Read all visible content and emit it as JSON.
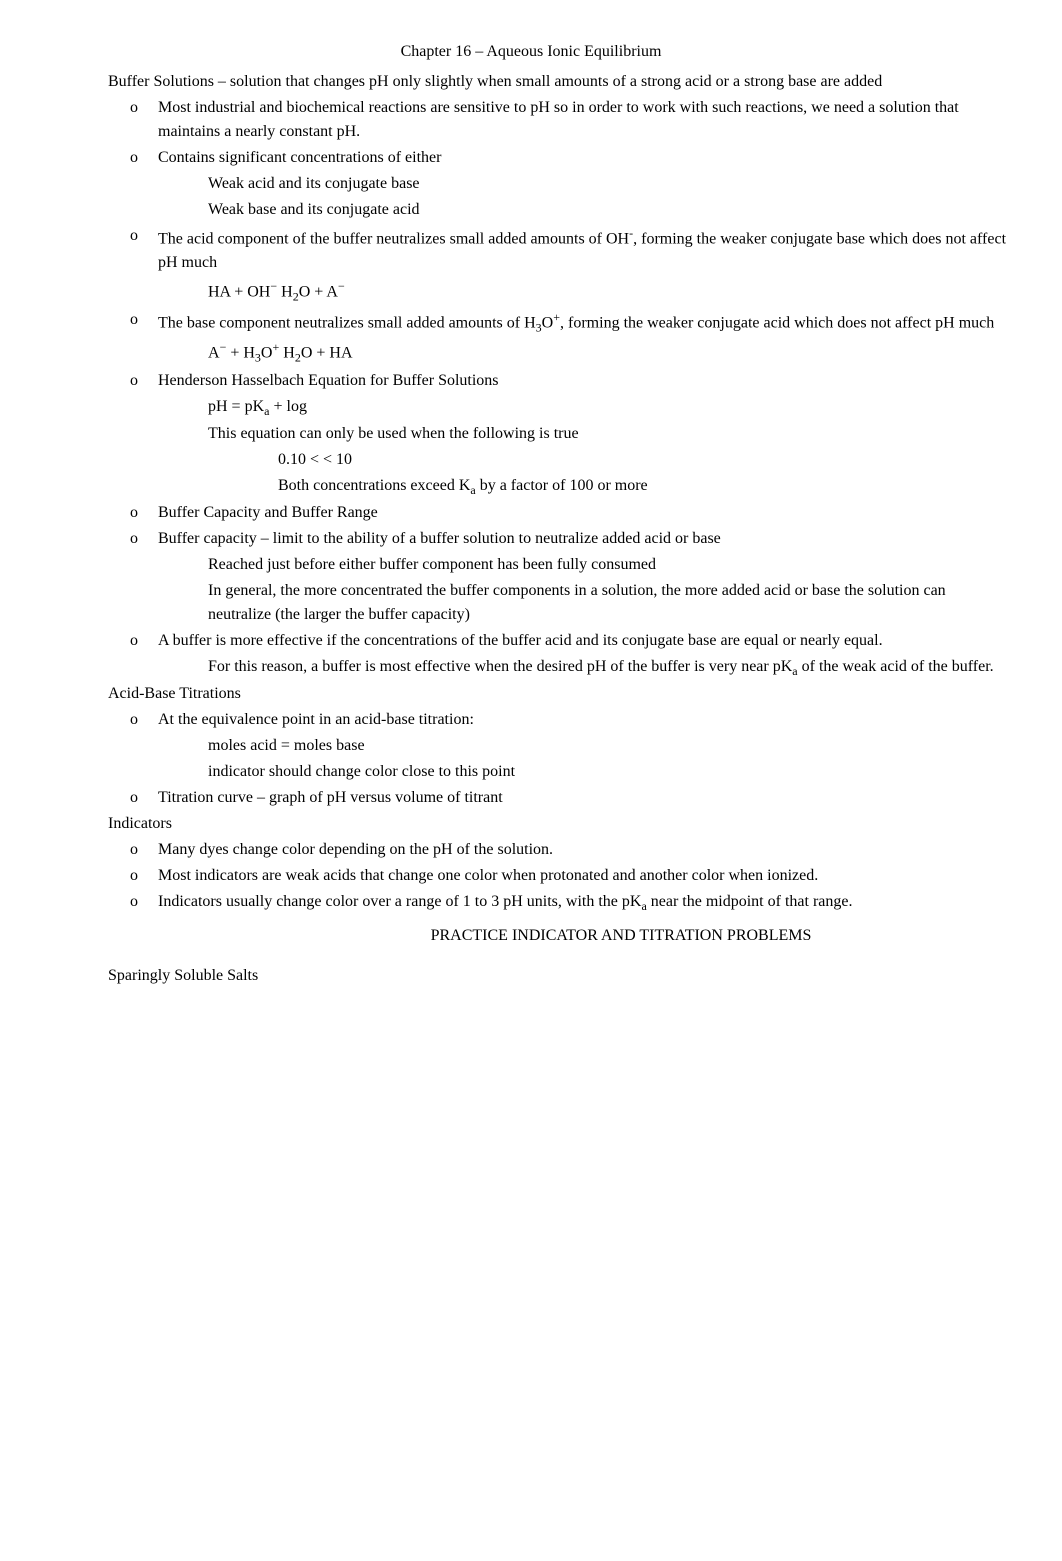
{
  "title": "Chapter 16 – Aqueous Ionic Equilibrium",
  "bullets": {
    "square": "",
    "circle": "o"
  },
  "items": {
    "buffer_intro": "Buffer Solutions  – solution that changes pH only slightly when small amounts of a strong acid or a strong base are added",
    "industrial": "Most industrial and biochemical reactions are sensitive to pH so in order to work with such reactions, we need a solution that maintains a nearly constant pH.",
    "contains": "Contains significant concentrations of either",
    "weak_acid_conj": "Weak acid and its conjugate base",
    "weak_base_conj": "Weak base and its conjugate acid",
    "acid_component_pre": "The acid component of the buffer neutralizes small added amounts of OH",
    "acid_component_post": ", forming the weaker conjugate base which does not affect pH much",
    "eq1_pre": "HA  +  OH",
    "eq1_arrow": "    ",
    "eq1_post_1": "H",
    "eq1_post_2": "O   +   A",
    "base_component_pre": "The base component neutralizes small added amounts of H",
    "base_component_mid": "O",
    "base_component_post": ", forming the weaker conjugate acid which does not affect pH much",
    "eq2_a": "A",
    "eq2_plus1": "  +  H",
    "eq2_o1": "O",
    "eq2_arrow": "    ",
    "eq2_h2": "H",
    "eq2_o2": "O   +   HA",
    "hh_title": "Henderson Hasselbach Equation     for Buffer Solutions",
    "hh_eq": "pH = pK",
    "hh_eq_post": " + log",
    "hh_use": "This equation can only be used when the following is true",
    "hh_range": "0.10 <    < 10",
    "hh_conc_pre": "Both concentrations exceed K",
    "hh_conc_post": " by a factor of 100 or more",
    "cap_range": "Buffer Capacity and Buffer Range",
    "capacity_def": "Buffer capacity   – limit to the ability of a buffer solution to neutralize added acid or base",
    "reached": "Reached just before either buffer component has been fully consumed",
    "in_general": "In general, the more concentrated the buffer components in a solution, the more added acid or base the solution can neutralize (the larger the buffer capacity)",
    "effective": "A buffer is more effective if the concentrations of the buffer acid and its conjugate base are equal or nearly equal.",
    "for_reason_pre": "For this reason, a buffer is most effective when the desired pH of the buffer is very near pK",
    "for_reason_post": " of the weak acid of the buffer.",
    "titrations": "Acid-Base Titrations",
    "equiv_point": "At the equivalence point   in an acid-base titration:",
    "moles": "moles acid = moles base",
    "indicator_change": "indicator should change color close to this point",
    "titration_curve": "Titration curve   – graph of pH versus volume of titrant",
    "indicators": "Indicators",
    "dyes": "Many dyes change color depending on the pH of the solution.",
    "weak_acids": "Most indicators are weak acids that change one color when protonated and another color when ionized.",
    "range_1_3_pre": "Indicators usually change color over a range of 1 to 3 pH units, with the pK",
    "range_1_3_post": " near the midpoint of that range.",
    "practice": "PRACTICE INDICATOR AND TITRATION PROBLEMS",
    "sparingly": "Sparingly Soluble Salts",
    "sub_a": "a",
    "sub_2": "2",
    "sub_3": "3",
    "sup_plus": "+",
    "sup_minus": "−",
    "sup_minus_dash": "-"
  }
}
